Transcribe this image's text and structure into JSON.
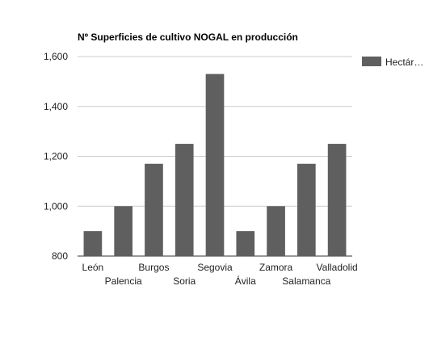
{
  "chart_data": {
    "type": "bar",
    "title": "Nº Superficies de cultivo NOGAL en producción",
    "categories": [
      "León",
      "Palencia",
      "Burgos",
      "Soria",
      "Segovia",
      "Ávila",
      "Zamora",
      "Salamanca",
      "Valladolid"
    ],
    "series": [
      {
        "name": "Hectár…",
        "values": [
          900,
          1000,
          1170,
          1250,
          1530,
          900,
          1000,
          1170,
          1250
        ]
      }
    ],
    "ylim": [
      800,
      1600
    ],
    "y_ticks": [
      "800",
      "1,000",
      "1,200",
      "1,400",
      "1,600"
    ],
    "y_tick_values": [
      800,
      1000,
      1200,
      1400,
      1600
    ],
    "grid": true,
    "legend_position": "right",
    "bar_color": "#5f5f5f",
    "grid_color": "#cccccc"
  }
}
